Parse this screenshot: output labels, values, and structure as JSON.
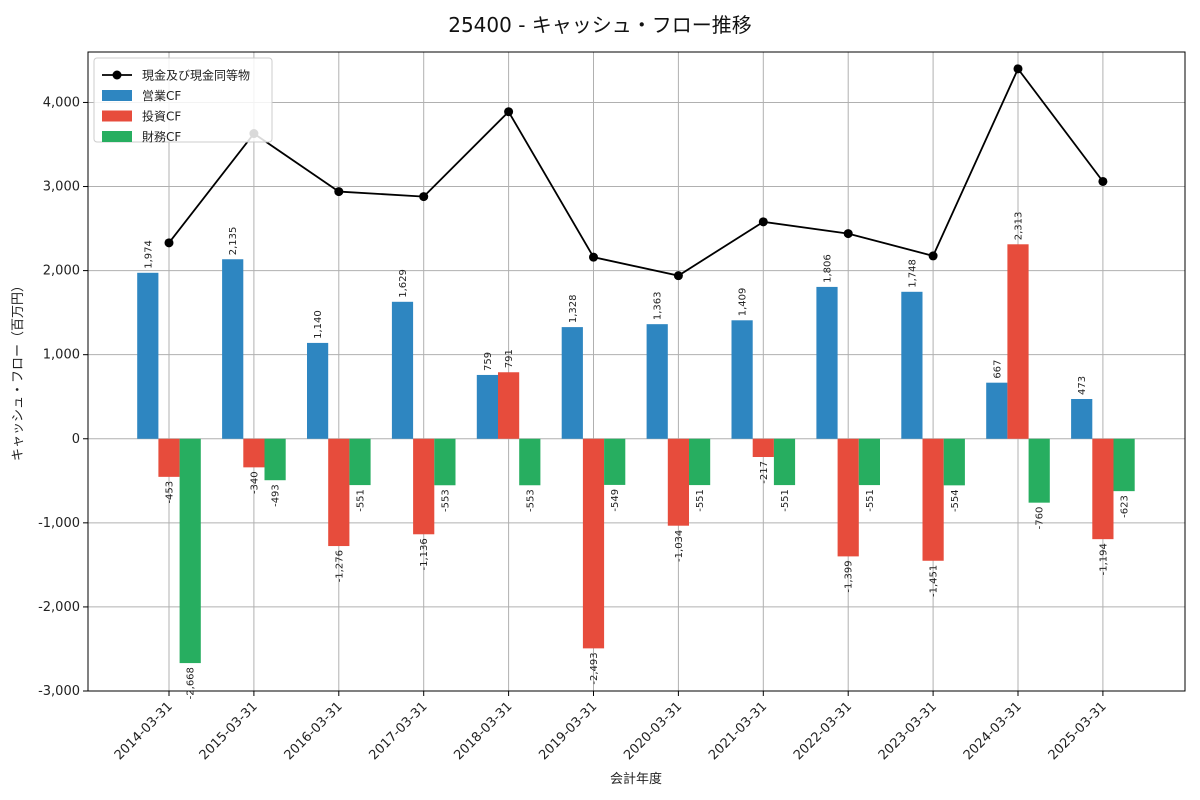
{
  "chart_data": {
    "type": "bar",
    "title": "25400 - キャッシュ・フロー推移",
    "xlabel": "会計年度",
    "ylabel": "キャッシュ・フロー（百万円）",
    "categories": [
      "2014-03-31",
      "2015-03-31",
      "2016-03-31",
      "2017-03-31",
      "2018-03-31",
      "2019-03-31",
      "2020-03-31",
      "2021-03-31",
      "2022-03-31",
      "2023-03-31",
      "2024-03-31",
      "2025-03-31"
    ],
    "ylim": [
      -3000,
      4600
    ],
    "yticks": [
      -3000,
      -2000,
      -1000,
      0,
      1000,
      2000,
      3000,
      4000
    ],
    "ytick_labels": [
      "-3,000",
      "-2,000",
      "-1,000",
      "0",
      "1,000",
      "2,000",
      "3,000",
      "4,000"
    ],
    "grid": true,
    "legend_position": "top-left",
    "series": [
      {
        "name": "営業CF",
        "kind": "bar",
        "color": "#2e86c1",
        "values": [
          1974,
          2135,
          1140,
          1629,
          759,
          1328,
          1363,
          1409,
          1806,
          1748,
          667,
          473
        ],
        "labels": [
          "1,974",
          "2,135",
          "1,140",
          "1,629",
          "759",
          "1,328",
          "1,363",
          "1,409",
          "1,806",
          "1,748",
          "667",
          "473"
        ]
      },
      {
        "name": "投資CF",
        "kind": "bar",
        "color": "#e74c3c",
        "values": [
          -453,
          -340,
          -1276,
          -1136,
          791,
          -2493,
          -1034,
          -217,
          -1399,
          -1451,
          2313,
          -1194
        ],
        "labels": [
          "-453",
          "-340",
          "-1,276",
          "-1,136",
          "791",
          "-2,493",
          "-1,034",
          "-217",
          "-1,399",
          "-1,451",
          "2,313",
          "-1,194"
        ]
      },
      {
        "name": "財務CF",
        "kind": "bar",
        "color": "#27ae60",
        "values": [
          -2668,
          -493,
          -551,
          -553,
          -553,
          -549,
          -551,
          -551,
          -551,
          -554,
          -760,
          -623
        ],
        "labels": [
          "-2,668",
          "-493",
          "-551",
          "-553",
          "-553",
          "-549",
          "-551",
          "-551",
          "-551",
          "-554",
          "-760",
          "-623"
        ]
      },
      {
        "name": "現金及び現金同等物",
        "kind": "line",
        "color": "#000000",
        "values": [
          2330,
          3630,
          2940,
          2880,
          3890,
          2160,
          1940,
          2580,
          2440,
          2175,
          4400,
          3060
        ]
      }
    ]
  }
}
